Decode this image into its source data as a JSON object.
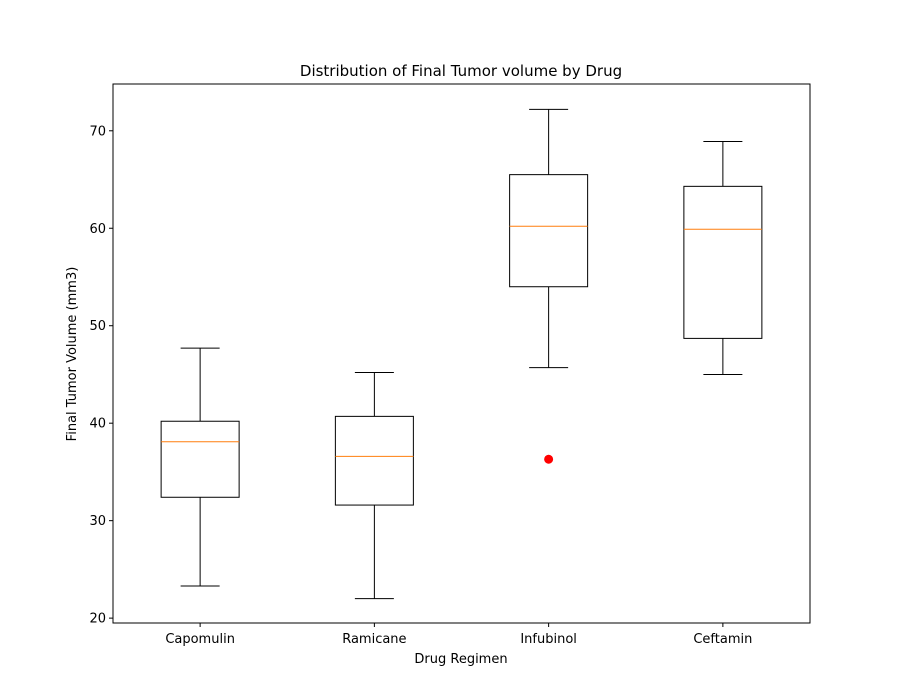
{
  "chart_data": {
    "type": "box",
    "title": "Distribution of Final Tumor volume by Drug",
    "xlabel": "Drug Regimen",
    "ylabel": "Final Tumor Volume (mm3)",
    "ylim": [
      19.5,
      74.8
    ],
    "yticks": [
      "20",
      "30",
      "40",
      "50",
      "60",
      "70"
    ],
    "grid": false,
    "categories": [
      "Capomulin",
      "Ramicane",
      "Infubinol",
      "Ceftamin"
    ],
    "boxes": [
      {
        "whisker_low": 23.3,
        "q1": 32.4,
        "median": 38.1,
        "q3": 40.2,
        "whisker_high": 47.7,
        "outliers": []
      },
      {
        "whisker_low": 22.0,
        "q1": 31.6,
        "median": 36.6,
        "q3": 40.7,
        "whisker_high": 45.2,
        "outliers": []
      },
      {
        "whisker_low": 45.7,
        "q1": 54.0,
        "median": 60.2,
        "q3": 65.5,
        "whisker_high": 72.2,
        "outliers": [
          36.3
        ]
      },
      {
        "whisker_low": 45.0,
        "q1": 48.7,
        "median": 59.9,
        "q3": 64.3,
        "whisker_high": 68.9,
        "outliers": []
      }
    ],
    "colors": {
      "box": "#000000",
      "median": "#ff7f0e",
      "outlier": "#ff0000"
    }
  }
}
